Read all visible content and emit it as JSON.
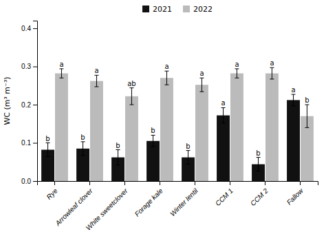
{
  "chart_data": {
    "type": "bar",
    "categories": [
      "Rye",
      "Arrowleaf clover",
      "White sweetclover",
      "Forage kale",
      "Winter lentil",
      "CCM 1",
      "CCM 2",
      "Fallow"
    ],
    "series": [
      {
        "name": "2021",
        "color": "#111111",
        "values": [
          0.082,
          0.085,
          0.062,
          0.105,
          0.062,
          0.172,
          0.044,
          0.212
        ],
        "errors": [
          0.018,
          0.018,
          0.02,
          0.015,
          0.018,
          0.02,
          0.018,
          0.015
        ],
        "annotations": [
          "b",
          "b",
          "b",
          "b",
          "b",
          "a",
          "b",
          "a"
        ]
      },
      {
        "name": "2022",
        "color": "#bbbbbb",
        "values": [
          0.282,
          0.262,
          0.222,
          0.27,
          0.252,
          0.282,
          0.282,
          0.17
        ],
        "errors": [
          0.012,
          0.015,
          0.022,
          0.018,
          0.018,
          0.012,
          0.015,
          0.03
        ],
        "annotations": [
          "a",
          "a",
          "ab",
          "a",
          "a",
          "a",
          "a",
          "b"
        ]
      }
    ],
    "ylabel": "WC (m³ m⁻³)",
    "ylim": [
      0,
      0.42
    ],
    "yticks": [
      {
        "value": 0,
        "label": "0.0"
      },
      0.1,
      0.2,
      0.3,
      0.4
    ],
    "grid": false,
    "legend": "top"
  }
}
